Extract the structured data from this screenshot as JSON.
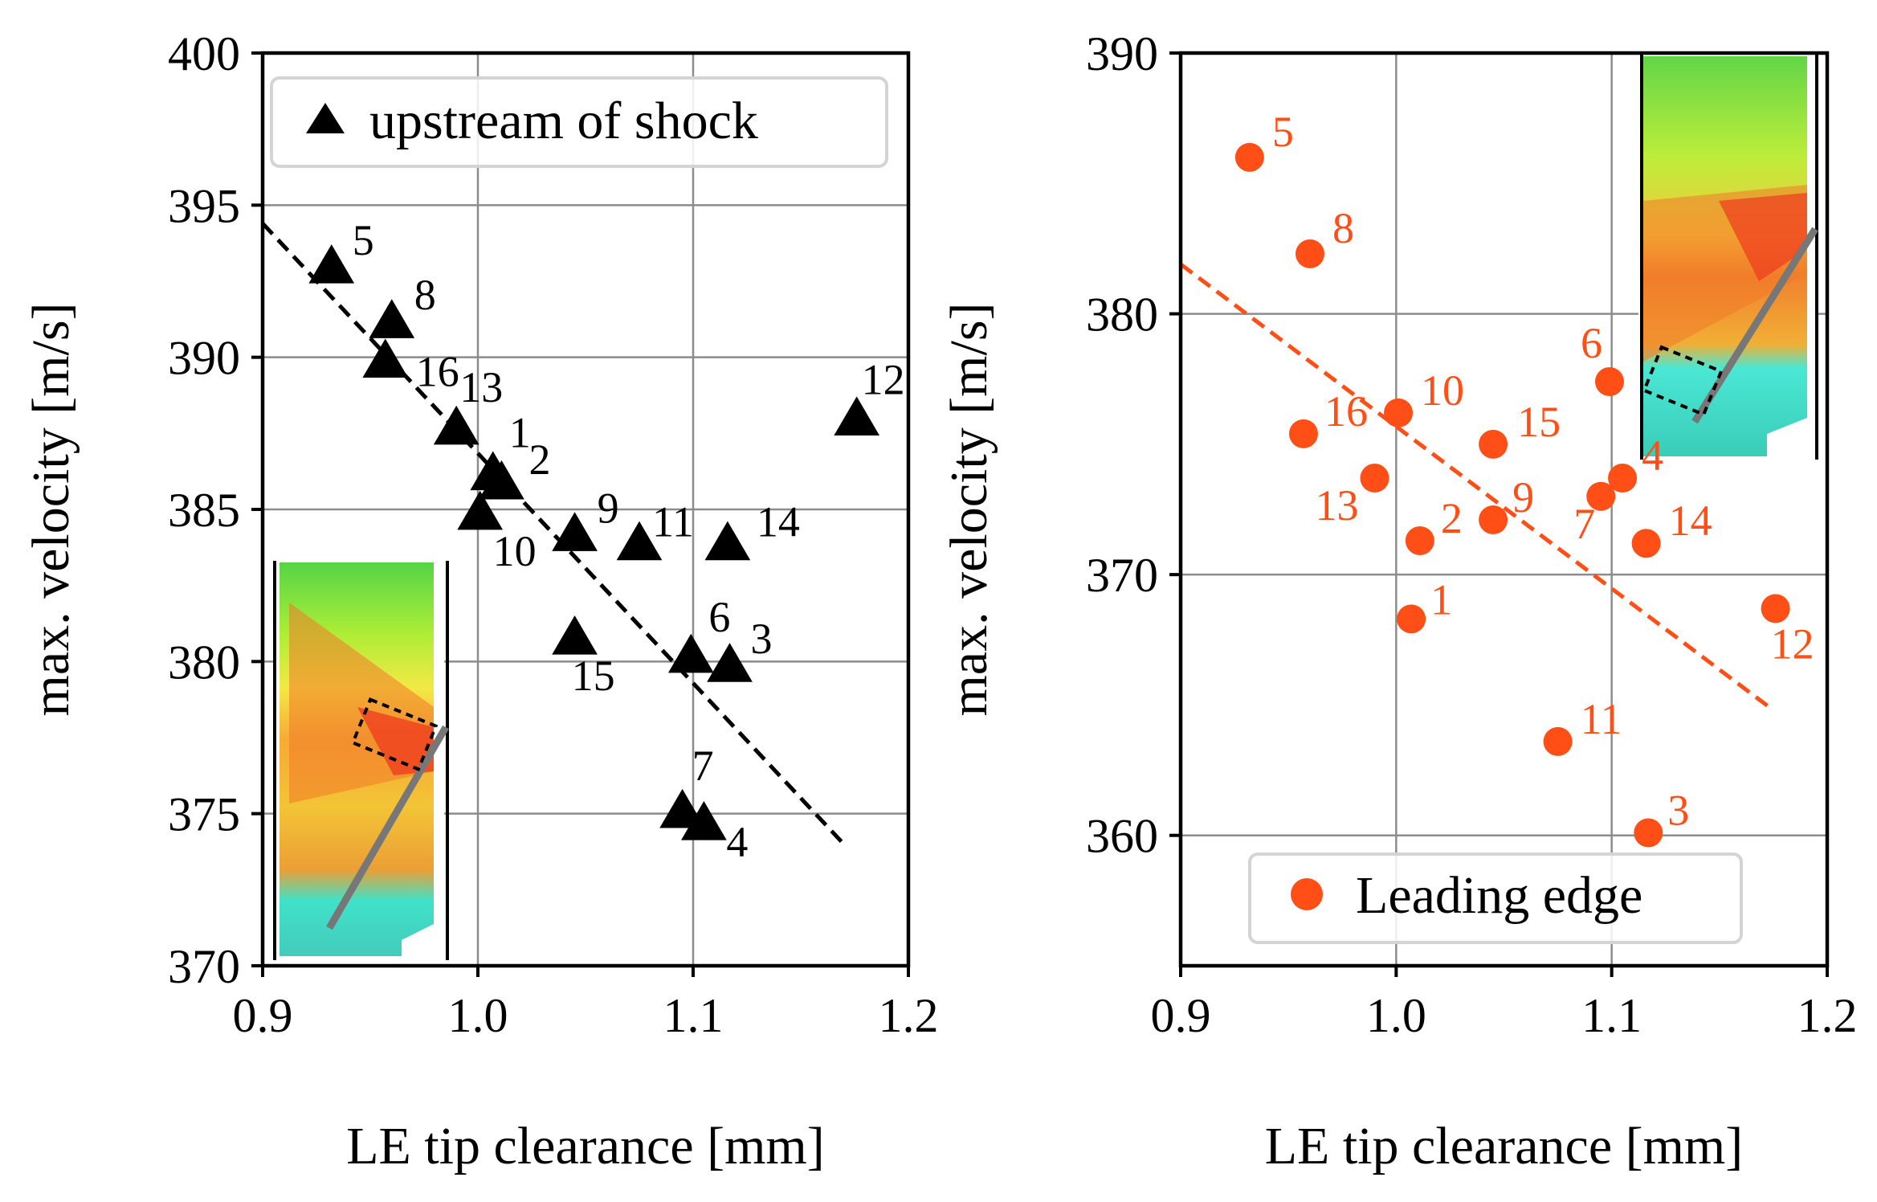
{
  "chart_data": [
    {
      "type": "scatter",
      "panel": "left",
      "xlabel": "LE tip clearance [mm]",
      "ylabel": "max. velocity [m/s]",
      "xlim": [
        0.9,
        1.2
      ],
      "ylim": [
        370,
        400
      ],
      "xticks": [
        0.9,
        1.0,
        1.1,
        1.2
      ],
      "yticks": [
        370,
        375,
        380,
        385,
        390,
        395,
        400
      ],
      "xtick_labels": [
        "0.9",
        "1.0",
        "1.1",
        "1.2"
      ],
      "ytick_labels": [
        "370",
        "375",
        "380",
        "385",
        "390",
        "395",
        "400"
      ],
      "grid": true,
      "legend": {
        "position": "top-left",
        "entries": [
          "upstream of shock"
        ]
      },
      "series": [
        {
          "name": "upstream of shock",
          "marker": "triangle",
          "color": "#000000",
          "points": [
            {
              "label": "1",
              "x": 1.007,
              "y": 386.2
            },
            {
              "label": "2",
              "x": 1.011,
              "y": 385.9
            },
            {
              "label": "3",
              "x": 1.117,
              "y": 379.9
            },
            {
              "label": "4",
              "x": 1.105,
              "y": 374.7
            },
            {
              "label": "5",
              "x": 0.932,
              "y": 393.0
            },
            {
              "label": "6",
              "x": 1.099,
              "y": 380.2
            },
            {
              "label": "7",
              "x": 1.095,
              "y": 375.1
            },
            {
              "label": "8",
              "x": 0.96,
              "y": 391.2
            },
            {
              "label": "9",
              "x": 1.045,
              "y": 384.2
            },
            {
              "label": "10",
              "x": 1.001,
              "y": 384.9
            },
            {
              "label": "11",
              "x": 1.075,
              "y": 383.9
            },
            {
              "label": "12",
              "x": 1.176,
              "y": 388.0
            },
            {
              "label": "13",
              "x": 0.99,
              "y": 387.7
            },
            {
              "label": "14",
              "x": 1.116,
              "y": 383.9
            },
            {
              "label": "15",
              "x": 1.045,
              "y": 380.8
            },
            {
              "label": "16",
              "x": 0.957,
              "y": 389.9
            }
          ]
        }
      ],
      "trend_line": {
        "style": "dashed",
        "color": "#000000",
        "x": [
          0.9,
          1.17
        ],
        "y": [
          394.4,
          374.0
        ]
      }
    },
    {
      "type": "scatter",
      "panel": "right",
      "xlabel": "LE tip clearance [mm]",
      "ylabel": "max. velocity [m/s]",
      "xlim": [
        0.9,
        1.2
      ],
      "ylim": [
        355,
        390
      ],
      "xticks": [
        0.9,
        1.0,
        1.1,
        1.2
      ],
      "yticks": [
        360,
        370,
        380,
        390
      ],
      "xtick_labels": [
        "0.9",
        "1.0",
        "1.1",
        "1.2"
      ],
      "ytick_labels": [
        "360",
        "370",
        "380",
        "390"
      ],
      "grid": true,
      "legend": {
        "position": "bottom-center",
        "entries": [
          "Leading edge"
        ]
      },
      "series": [
        {
          "name": "Leading edge",
          "marker": "circle",
          "color": "#ff4f16",
          "points": [
            {
              "label": "1",
              "x": 1.007,
              "y": 368.3
            },
            {
              "label": "2",
              "x": 1.011,
              "y": 371.3
            },
            {
              "label": "3",
              "x": 1.117,
              "y": 360.1
            },
            {
              "label": "4",
              "x": 1.105,
              "y": 373.7
            },
            {
              "label": "5",
              "x": 0.932,
              "y": 386.0
            },
            {
              "label": "6",
              "x": 1.099,
              "y": 377.4
            },
            {
              "label": "7",
              "x": 1.095,
              "y": 373.0
            },
            {
              "label": "8",
              "x": 0.96,
              "y": 382.3
            },
            {
              "label": "9",
              "x": 1.045,
              "y": 372.1
            },
            {
              "label": "10",
              "x": 1.001,
              "y": 376.2
            },
            {
              "label": "11",
              "x": 1.075,
              "y": 363.6
            },
            {
              "label": "12",
              "x": 1.176,
              "y": 368.7
            },
            {
              "label": "13",
              "x": 0.99,
              "y": 373.7
            },
            {
              "label": "14",
              "x": 1.116,
              "y": 371.2
            },
            {
              "label": "15",
              "x": 1.045,
              "y": 375.0
            },
            {
              "label": "16",
              "x": 0.957,
              "y": 375.4
            }
          ]
        }
      ],
      "trend_line": {
        "style": "dashed",
        "color": "#ff4f16",
        "x": [
          0.9,
          1.175
        ],
        "y": [
          381.9,
          364.8
        ]
      }
    }
  ]
}
